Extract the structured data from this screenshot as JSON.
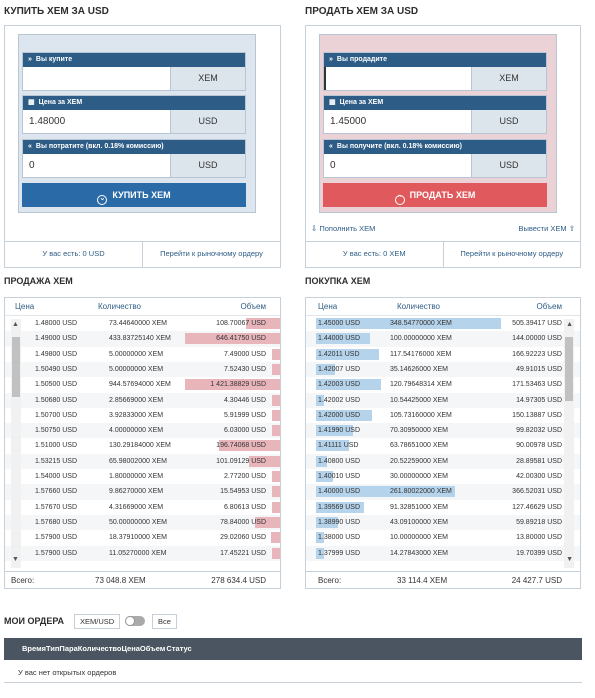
{
  "buy_panel": {
    "title": "КУПИТЬ XEM ЗА USD",
    "field1": {
      "label": "Вы купите",
      "value": "",
      "unit": "XEM",
      "icon": "chevrons-right-icon"
    },
    "field2": {
      "label": "Цена за XEM",
      "value": "1.48000",
      "unit": "USD",
      "icon": "calculator-icon"
    },
    "field3": {
      "label": "Вы потратите (вкл. 0.18% комиссию)",
      "value": "0",
      "unit": "USD",
      "icon": "chevrons-left-icon"
    },
    "button": "КУПИТЬ XEM",
    "balance": "У вас есть: 0 USD",
    "market_link": "Перейти к рыночному ордеру"
  },
  "sell_panel": {
    "title": "ПРОДАТЬ XEM ЗА USD",
    "field1": {
      "label": "Вы продадите",
      "value": "",
      "unit": "XEM",
      "icon": "chevrons-right-icon"
    },
    "field2": {
      "label": "Цена за XEM",
      "value": "1.45000",
      "unit": "USD",
      "icon": "calculator-icon"
    },
    "field3": {
      "label": "Вы получите (вкл. 0.18% комиссию)",
      "value": "0",
      "unit": "USD",
      "icon": "chevrons-left-icon"
    },
    "button": "ПРОДАТЬ XEM",
    "deposit": "Пополнить XEM",
    "withdraw": "Вывести XEM",
    "balance": "У вас есть: 0 XEM",
    "market_link": "Перейти к рыночному ордеру"
  },
  "sell_book": {
    "title": "ПРОДАЖА XEM",
    "cols": [
      "Цена",
      "Количество",
      "Объем"
    ],
    "rows": [
      {
        "price": "1.48000 USD",
        "qty": "73.44640000 XEM",
        "vol": "108.70067 USD",
        "depth": 0.36
      },
      {
        "price": "1.49000 USD",
        "qty": "433.83725140 XEM",
        "vol": "646.41750 USD",
        "depth": 1.0
      },
      {
        "price": "1.49800 USD",
        "qty": "5.00000000 XEM",
        "vol": "7.49000 USD",
        "depth": 0.02
      },
      {
        "price": "1.50490 USD",
        "qty": "5.00000000 XEM",
        "vol": "7.52430 USD",
        "depth": 0.02
      },
      {
        "price": "1.50500 USD",
        "qty": "944.57694000 XEM",
        "vol": "1 421.38829 USD",
        "depth": 1.0
      },
      {
        "price": "1.50680 USD",
        "qty": "2.85669000 XEM",
        "vol": "4.30446 USD",
        "depth": 0.02
      },
      {
        "price": "1.50700 USD",
        "qty": "3.92833000 XEM",
        "vol": "5.91999 USD",
        "depth": 0.02
      },
      {
        "price": "1.50750 USD",
        "qty": "4.00000000 XEM",
        "vol": "6.03000 USD",
        "depth": 0.02
      },
      {
        "price": "1.51000 USD",
        "qty": "130.29184000 XEM",
        "vol": "196.74068 USD",
        "depth": 0.64
      },
      {
        "price": "1.53215 USD",
        "qty": "65.98002000 XEM",
        "vol": "101.09129 USD",
        "depth": 0.33
      },
      {
        "price": "1.54000 USD",
        "qty": "1.80000000 XEM",
        "vol": "2.77200 USD",
        "depth": 0.01
      },
      {
        "price": "1.57660 USD",
        "qty": "9.86270000 XEM",
        "vol": "15.54953 USD",
        "depth": 0.05
      },
      {
        "price": "1.57670 USD",
        "qty": "4.31669000 XEM",
        "vol": "6.80613 USD",
        "depth": 0.02
      },
      {
        "price": "1.57680 USD",
        "qty": "50.00000000 XEM",
        "vol": "78.84000 USD",
        "depth": 0.26
      },
      {
        "price": "1.57900 USD",
        "qty": "18.37910000 XEM",
        "vol": "29.02060 USD",
        "depth": 0.09
      },
      {
        "price": "1.57900 USD",
        "qty": "11.05270000 XEM",
        "vol": "17.45221 USD",
        "depth": 0.06
      }
    ],
    "total_label": "Всего:",
    "total_qty": "73 048.8 XEM",
    "total_vol": "278 634.4 USD",
    "color": "#e8b5bb"
  },
  "buy_book": {
    "title": "ПОКУПКА XEM",
    "cols": [
      "Цена",
      "Количество",
      "Объем"
    ],
    "rows": [
      {
        "price": "1.45000 USD",
        "qty": "348.54770000 XEM",
        "vol": "505.39417 USD",
        "depth": 1.0
      },
      {
        "price": "1.44000 USD",
        "qty": "100.00000000 XEM",
        "vol": "144.00000 USD",
        "depth": 0.29
      },
      {
        "price": "1.42011 USD",
        "qty": "117.54176000 XEM",
        "vol": "166.92223 USD",
        "depth": 0.34
      },
      {
        "price": "1.42007 USD",
        "qty": "35.14626000 XEM",
        "vol": "49.91015 USD",
        "depth": 0.1
      },
      {
        "price": "1.42003 USD",
        "qty": "120.79648314 XEM",
        "vol": "171.53463 USD",
        "depth": 0.35
      },
      {
        "price": "1.42002 USD",
        "qty": "10.54425000 XEM",
        "vol": "14.97305 USD",
        "depth": 0.03
      },
      {
        "price": "1.42000 USD",
        "qty": "105.73160000 XEM",
        "vol": "150.13887 USD",
        "depth": 0.3
      },
      {
        "price": "1.41990 USD",
        "qty": "70.30950000 XEM",
        "vol": "99.82032 USD",
        "depth": 0.2
      },
      {
        "price": "1.41111 USD",
        "qty": "63.78651000 XEM",
        "vol": "90.00978 USD",
        "depth": 0.18
      },
      {
        "price": "1.40800 USD",
        "qty": "20.52259000 XEM",
        "vol": "28.89581 USD",
        "depth": 0.06
      },
      {
        "price": "1.40010 USD",
        "qty": "30.00000000 XEM",
        "vol": "42.00300 USD",
        "depth": 0.09
      },
      {
        "price": "1.40000 USD",
        "qty": "261.80022000 XEM",
        "vol": "366.52031 USD",
        "depth": 0.75
      },
      {
        "price": "1.39569 USD",
        "qty": "91.32851000 XEM",
        "vol": "127.46629 USD",
        "depth": 0.26
      },
      {
        "price": "1.38990 USD",
        "qty": "43.09100000 XEM",
        "vol": "59.89218 USD",
        "depth": 0.12
      },
      {
        "price": "1.38000 USD",
        "qty": "10.00000000 XEM",
        "vol": "13.80000 USD",
        "depth": 0.03
      },
      {
        "price": "1.37999 USD",
        "qty": "14.27843000 XEM",
        "vol": "19.70399 USD",
        "depth": 0.04
      }
    ],
    "total_label": "Всего:",
    "total_qty": "33 114.4 XEM",
    "total_vol": "24 427.7 USD",
    "color": "#b5d3ea"
  },
  "orders": {
    "title": "МОИ ОРДЕРА",
    "pair_filter": "XEM/USD",
    "all_filter": "Все",
    "headers": "ВремяТипПараКоличествоЦенаОбъем  Статус",
    "empty": "У вас нет открытых ордеров"
  }
}
